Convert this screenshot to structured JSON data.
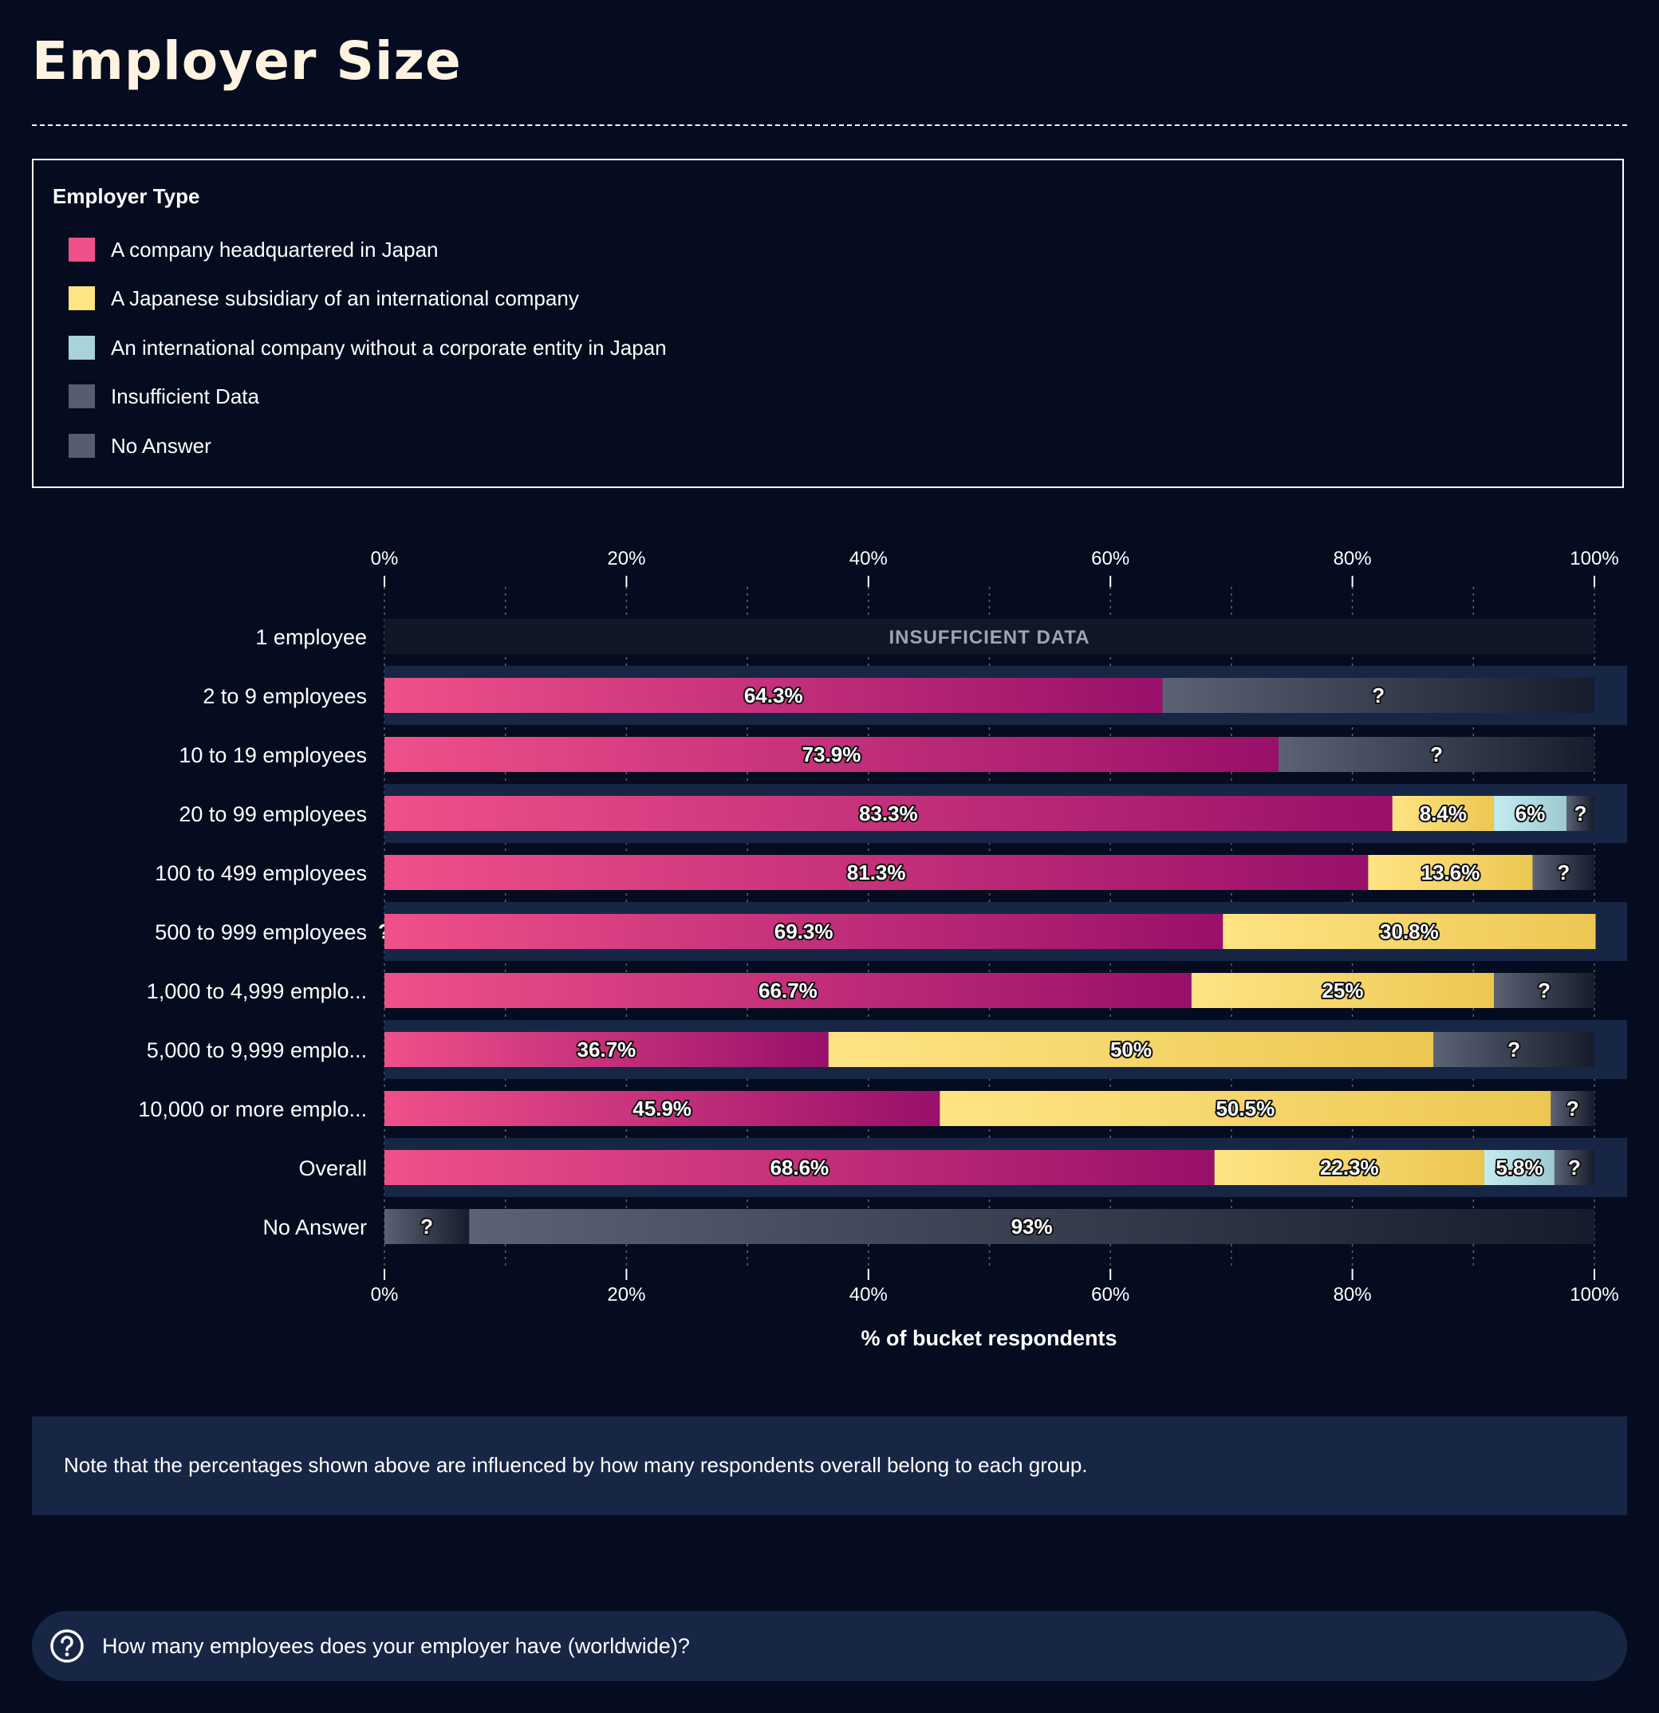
{
  "page": {
    "title": "Employer Size",
    "note": "Note that the percentages shown above are influenced by how many respondents overall belong to each group.",
    "question": "How many employees does your employer have (worldwide)?",
    "question_icon": "question-circle-icon"
  },
  "legend": {
    "title": "Employer Type",
    "items": [
      {
        "label": "A company headquartered in Japan",
        "color": "#f0508a"
      },
      {
        "label": "A Japanese subsidiary of an international company",
        "color": "#ffe484"
      },
      {
        "label": "An international company without a corporate entity in Japan",
        "color": "#a8d3d8"
      },
      {
        "label": "Insufficient Data",
        "color": "#565d6e"
      },
      {
        "label": "No Answer",
        "color": "#565d6e"
      }
    ]
  },
  "chart_data": {
    "type": "bar",
    "orientation": "horizontal",
    "stacked": true,
    "xlabel": "% of bucket respondents",
    "xlim": [
      0,
      100
    ],
    "xticks": [
      "0%",
      "20%",
      "40%",
      "60%",
      "80%",
      "100%"
    ],
    "grid": true,
    "insufficient_data_label": "INSUFFICIENT DATA",
    "categories": [
      "1 employee",
      "2 to 9 employees",
      "10 to 19 employees",
      "20 to 99 employees",
      "100 to 499 employees",
      "500 to 999 employees",
      "1,000 to 4,999 emplo...",
      "5,000 to 9,999 emplo...",
      "10,000 or more emplo...",
      "Overall",
      "No Answer"
    ],
    "rows": [
      {
        "insufficient": true,
        "segments": []
      },
      {
        "segments": [
          {
            "series": "A company headquartered in Japan",
            "value": 64.3,
            "label": "64.3%"
          },
          {
            "series": "No Answer",
            "value": 35.7,
            "label": "?"
          }
        ]
      },
      {
        "segments": [
          {
            "series": "A company headquartered in Japan",
            "value": 73.9,
            "label": "73.9%"
          },
          {
            "series": "No Answer",
            "value": 26.1,
            "label": "?"
          }
        ]
      },
      {
        "segments": [
          {
            "series": "A company headquartered in Japan",
            "value": 83.3,
            "label": "83.3%"
          },
          {
            "series": "A Japanese subsidiary of an international company",
            "value": 8.4,
            "label": "8.4%"
          },
          {
            "series": "An international company without a corporate entity in Japan",
            "value": 6,
            "label": "6%"
          },
          {
            "series": "No Answer",
            "value": 2.3,
            "label": "?"
          }
        ]
      },
      {
        "segments": [
          {
            "series": "A company headquartered in Japan",
            "value": 81.3,
            "label": "81.3%"
          },
          {
            "series": "A Japanese subsidiary of an international company",
            "value": 13.6,
            "label": "13.6%"
          },
          {
            "series": "No Answer",
            "value": 5.1,
            "label": "?"
          }
        ]
      },
      {
        "segments": [
          {
            "series": "No Answer",
            "value": 0,
            "label": "?"
          },
          {
            "series": "A company headquartered in Japan",
            "value": 69.3,
            "label": "69.3%"
          },
          {
            "series": "A Japanese subsidiary of an international company",
            "value": 30.8,
            "label": "30.8%"
          }
        ]
      },
      {
        "segments": [
          {
            "series": "A company headquartered in Japan",
            "value": 66.7,
            "label": "66.7%"
          },
          {
            "series": "A Japanese subsidiary of an international company",
            "value": 25,
            "label": "25%"
          },
          {
            "series": "No Answer",
            "value": 8.3,
            "label": "?"
          }
        ]
      },
      {
        "segments": [
          {
            "series": "A company headquartered in Japan",
            "value": 36.7,
            "label": "36.7%"
          },
          {
            "series": "A Japanese subsidiary of an international company",
            "value": 50,
            "label": "50%"
          },
          {
            "series": "No Answer",
            "value": 13.3,
            "label": "?"
          }
        ]
      },
      {
        "segments": [
          {
            "series": "A company headquartered in Japan",
            "value": 45.9,
            "label": "45.9%"
          },
          {
            "series": "A Japanese subsidiary of an international company",
            "value": 50.5,
            "label": "50.5%"
          },
          {
            "series": "No Answer",
            "value": 3.6,
            "label": "?"
          }
        ]
      },
      {
        "segments": [
          {
            "series": "A company headquartered in Japan",
            "value": 68.6,
            "label": "68.6%"
          },
          {
            "series": "A Japanese subsidiary of an international company",
            "value": 22.3,
            "label": "22.3%"
          },
          {
            "series": "An international company without a corporate entity in Japan",
            "value": 5.8,
            "label": "5.8%"
          },
          {
            "series": "No Answer",
            "value": 3.3,
            "label": "?"
          }
        ]
      },
      {
        "segments": [
          {
            "series": "Insufficient Data",
            "value": 7,
            "label": "?"
          },
          {
            "series": "No Answer",
            "value": 93,
            "label": "93%"
          }
        ]
      }
    ]
  }
}
